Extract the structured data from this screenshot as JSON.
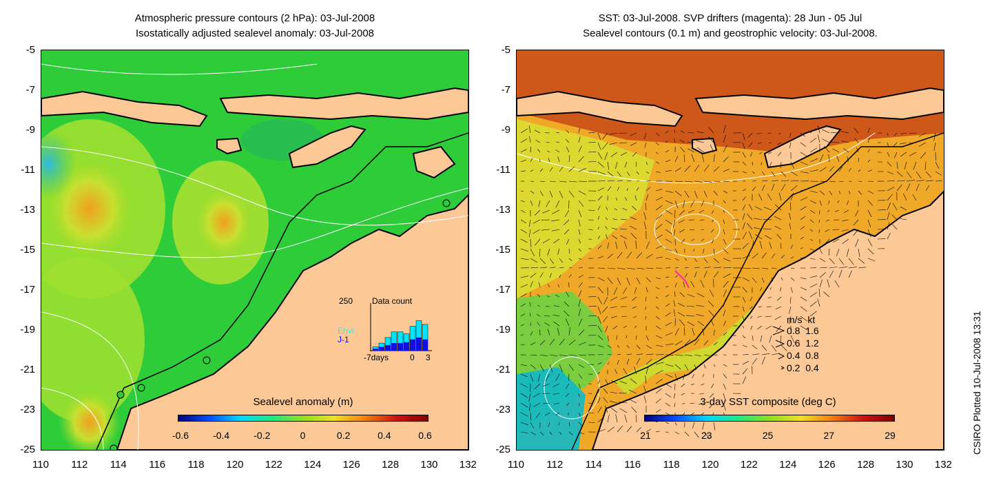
{
  "left_panel": {
    "title_line1": "Atmospheric pressure contours (2 hPa): 03-Jul-2008",
    "title_line2": "Isostatically adjusted sealevel anomaly: 03-Jul-2008",
    "colorbar": {
      "title": "Sealevel anomaly (m)",
      "ticks": [
        "-0.6",
        "-0.4",
        "-0.2",
        "0",
        "0.2",
        "0.4",
        "0.6"
      ]
    },
    "inset": {
      "ymax": "250",
      "title": "Data count",
      "label_envi": "Envi",
      "label_j1": "J-1",
      "x_left": "-7days",
      "x_zero": "0",
      "x_right": "3",
      "bars_total": [
        20,
        40,
        70,
        100,
        100,
        90,
        130,
        160,
        140
      ],
      "bars_j1": [
        10,
        20,
        30,
        40,
        40,
        45,
        60,
        70,
        60
      ],
      "max": 250
    }
  },
  "right_panel": {
    "title_line1": "SST: 03-Jul-2008. SVP drifters (magenta): 28 Jun - 05 Jul",
    "title_line2": "Sealevel contours (0.1 m) and geostrophic velocity: 03-Jul-2008.",
    "colorbar": {
      "title": "3-day SST composite (deg C)",
      "ticks": [
        "21",
        "23",
        "25",
        "27",
        "29"
      ]
    },
    "velocity_legend": {
      "header": "m/s  kt",
      "rows": [
        "0.8  1.6",
        "0.6  1.2",
        "0.4  0.8",
        "0.2  0.4"
      ]
    }
  },
  "axes": {
    "y_ticks": [
      "-5",
      "-7",
      "-9",
      "-11",
      "-13",
      "-15",
      "-17",
      "-19",
      "-21",
      "-23",
      "-25"
    ],
    "x_ticks": [
      "110",
      "112",
      "114",
      "116",
      "118",
      "120",
      "122",
      "124",
      "126",
      "128",
      "130",
      "132"
    ]
  },
  "credit": "CSIRO Plotted 10-Jul-2008 13:31",
  "colors": {
    "land": "#fbc896",
    "coast": "#000000",
    "sla_green": "#22cc22",
    "sst_orange": "#f0a020"
  }
}
